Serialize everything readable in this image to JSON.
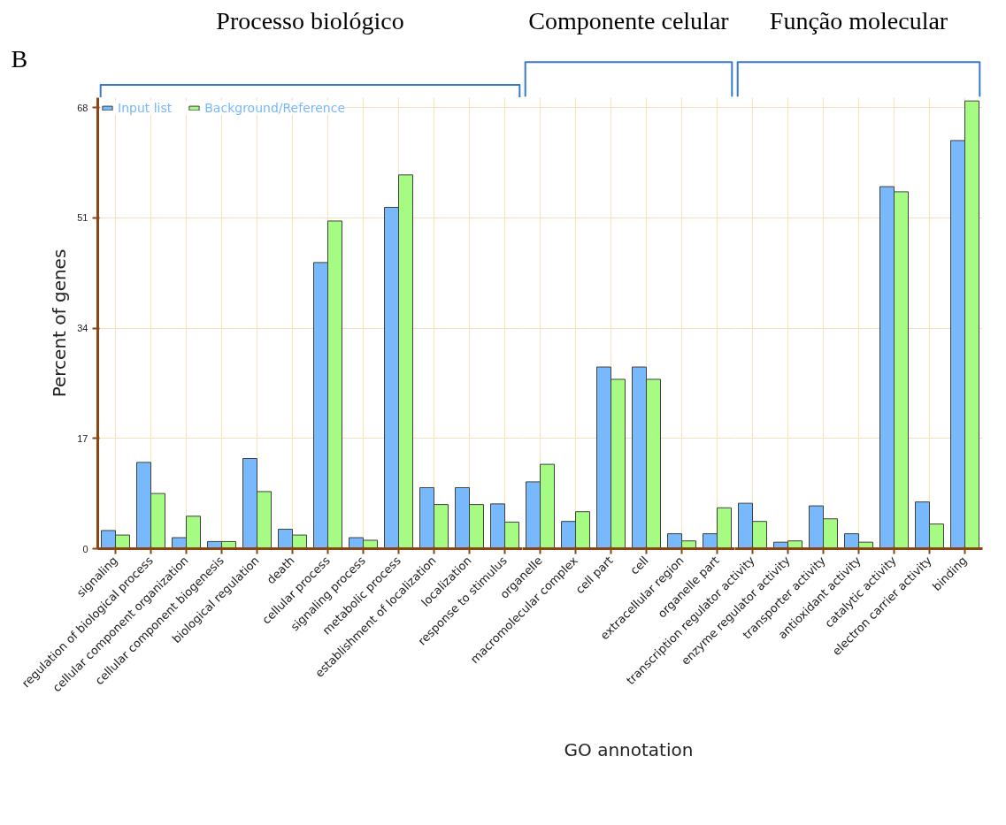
{
  "chart_data": [
    {
      "type": "bar",
      "title": "Processo biológico",
      "annotations": [
        "B"
      ],
      "ylabel": "Percent of genes",
      "categories": [
        "signaling",
        "regulation of biological process",
        "cellular component organization",
        "cellular component biogenesis",
        "biological regulation",
        "death",
        "cellular process",
        "signaling process",
        "metabolic process",
        "establishment of localization",
        "localization",
        "response to stimulus"
      ],
      "series": [
        {
          "name": "Input list",
          "color": "#78b8fc",
          "values": [
            2.8,
            13.3,
            1.7,
            1.1,
            13.9,
            3.0,
            44.1,
            1.7,
            52.6,
            9.4,
            9.4,
            6.9
          ]
        },
        {
          "name": "Background/Reference",
          "color": "#a6fc82",
          "values": [
            2.1,
            8.5,
            5.0,
            1.1,
            8.8,
            2.1,
            50.5,
            1.3,
            57.6,
            6.8,
            6.8,
            4.1
          ]
        }
      ],
      "ylim": [
        0,
        69.5
      ],
      "yticks": [
        0,
        17,
        34,
        51,
        68
      ],
      "grid": true,
      "legend": "top left"
    },
    {
      "type": "bar",
      "title": "Componente celular",
      "xlabel": "GO annotation",
      "categories": [
        "organelle",
        "macromolecular complex",
        "cell part",
        "cell",
        "extracellular region",
        "organelle part"
      ],
      "series": [
        {
          "color": "#78b8fc",
          "values": [
            10.3,
            4.2,
            28.0,
            28.0,
            2.3,
            2.3
          ]
        },
        {
          "color": "#a6fc82",
          "values": [
            13.0,
            5.7,
            26.1,
            26.1,
            1.2,
            6.3
          ]
        }
      ],
      "ylim": [
        0,
        69.5
      ],
      "yticks": [
        0,
        17,
        34,
        51,
        68
      ],
      "grid": true,
      "tick_labels": "x"
    },
    {
      "type": "bar",
      "title": "Função molecular",
      "categories": [
        "transcription regulator activity",
        "enzyme regulator activity",
        "transporter activity",
        "antioxidant activity",
        "catalytic activity",
        "electron carrier activity",
        "binding"
      ],
      "series": [
        {
          "color": "#78b8fc",
          "values": [
            7.0,
            1.0,
            6.6,
            2.3,
            55.8,
            7.2,
            62.9
          ]
        },
        {
          "color": "#a6fc82",
          "values": [
            4.2,
            1.2,
            4.6,
            1.0,
            55.0,
            3.8,
            69.0
          ]
        }
      ],
      "ylim": [
        0,
        69.5
      ],
      "yticks": [
        0,
        17,
        34,
        51,
        68
      ],
      "grid": true,
      "tick_labels": "x"
    }
  ]
}
